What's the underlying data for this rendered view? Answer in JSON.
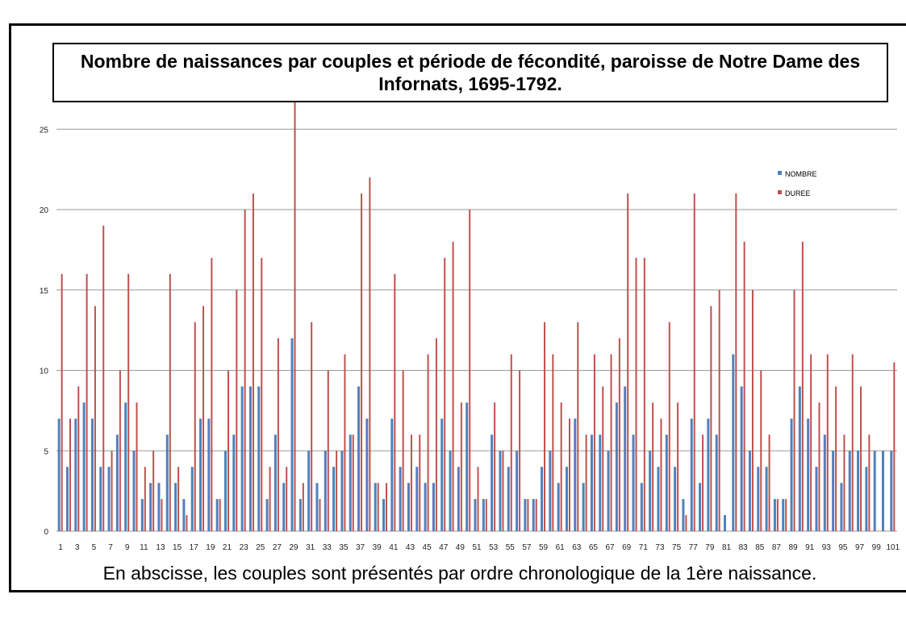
{
  "chart_data": {
    "type": "bar",
    "title": "Nombre de naissances par couples et période de fécondité, paroisse de Notre Dame des Infornats, 1695-1792.",
    "caption": "En abscisse, les couples sont présentés par ordre chronologique de la 1ère naissance.",
    "xlabel": "",
    "ylabel": "",
    "ylim": [
      0,
      25
    ],
    "yticks": [
      "0",
      "5",
      "10",
      "15",
      "20",
      "25"
    ],
    "xticks": [
      "1",
      "3",
      "5",
      "7",
      "9",
      "11",
      "13",
      "15",
      "17",
      "19",
      "21",
      "23",
      "25",
      "27",
      "29",
      "31",
      "33",
      "35",
      "37",
      "39",
      "41",
      "43",
      "45",
      "47",
      "49",
      "51",
      "53",
      "55",
      "57",
      "59",
      "61",
      "63",
      "65",
      "67",
      "69",
      "71",
      "73",
      "75",
      "77",
      "79",
      "81",
      "83",
      "85",
      "87",
      "89",
      "91",
      "93",
      "95",
      "97",
      "99",
      "101"
    ],
    "grid": true,
    "legend_position": "top-right",
    "categories_count": 101,
    "series": [
      {
        "name": "NOMBRE",
        "color": "#4f81bd",
        "values": [
          7,
          4,
          7,
          8,
          7,
          4,
          4,
          6,
          8,
          5,
          2,
          3,
          3,
          6,
          3,
          2,
          4,
          7,
          7,
          2,
          5,
          6,
          9,
          9,
          9,
          2,
          6,
          3,
          12,
          2,
          5,
          3,
          5,
          4,
          5,
          6,
          9,
          7,
          3,
          2,
          7,
          4,
          3,
          4,
          3,
          3,
          7,
          5,
          4,
          8,
          2,
          2,
          6,
          5,
          4,
          5,
          2,
          2,
          4,
          5,
          3,
          4,
          7,
          3,
          6,
          6,
          5,
          8,
          9,
          6,
          3,
          5,
          4,
          6,
          4,
          2,
          7,
          3,
          7,
          6,
          1,
          11,
          9,
          5,
          4,
          4,
          2,
          2,
          7,
          9,
          7,
          4,
          6,
          5,
          3,
          5,
          5,
          4,
          5,
          5,
          5
        ]
      },
      {
        "name": "DUREE",
        "color": "#c0504d",
        "values": [
          16,
          7,
          9,
          16,
          14,
          19,
          5,
          10,
          16,
          8,
          4,
          5,
          2,
          16,
          4,
          1,
          13,
          14,
          17,
          2,
          10,
          15,
          20,
          21,
          17,
          4,
          12,
          4,
          27,
          3,
          13,
          2,
          10,
          5,
          11,
          6,
          21,
          22,
          3,
          3,
          16,
          10,
          6,
          6,
          11,
          12,
          17,
          18,
          8,
          20,
          4,
          2,
          8,
          5,
          11,
          10,
          2,
          2,
          13,
          11,
          8,
          7,
          13,
          6,
          11,
          9,
          11,
          12,
          21,
          17,
          17,
          8,
          7,
          13,
          8,
          1,
          21,
          6,
          14,
          15,
          0,
          21,
          18,
          15,
          10,
          6,
          2,
          2,
          15,
          18,
          11,
          8,
          11,
          9,
          6,
          11,
          9,
          6,
          0,
          0,
          10.5
        ]
      }
    ]
  }
}
